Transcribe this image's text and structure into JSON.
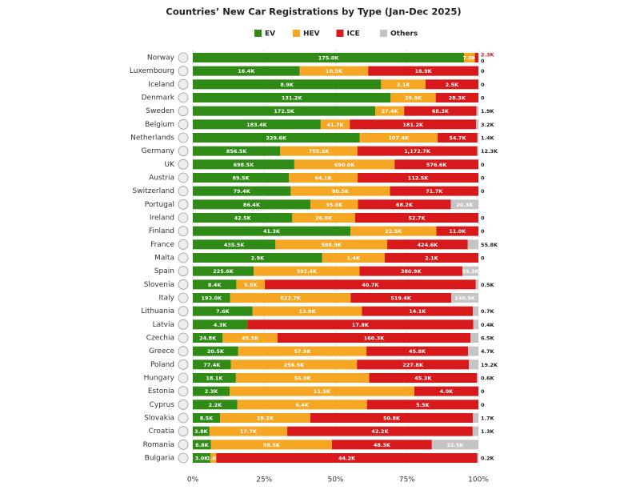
{
  "chart_data": {
    "type": "bar",
    "stacking": "percent",
    "orientation": "horizontal",
    "title": "Countries’ New Car Registrations by Type (Jan-Dec 2025)",
    "categories": [
      "Norway",
      "Luxembourg",
      "Iceland",
      "Denmark",
      "Sweden",
      "Belgium",
      "Netherlands",
      "Germany",
      "UK",
      "Austria",
      "Switzerland",
      "Portugal",
      "Ireland",
      "Finland",
      "France",
      "Malta",
      "Spain",
      "Slovenia",
      "Italy",
      "Lithuania",
      "Latvia",
      "Czechia",
      "Greece",
      "Poland",
      "Hungary",
      "Estonia",
      "Cyprus",
      "Slovakia",
      "Croatia",
      "Romania",
      "Bulgaria"
    ],
    "series": [
      {
        "name": "EV",
        "color": "#2f8a16",
        "values": [
          175000,
          16400,
          8900,
          131200,
          172500,
          183400,
          229600,
          856500,
          698500,
          89500,
          79400,
          86400,
          42500,
          41300,
          435500,
          2900,
          225600,
          8400,
          193000,
          7600,
          4300,
          24800,
          20500,
          77400,
          18100,
          2300,
          2200,
          8500,
          3800,
          8800,
          3000
        ],
        "value_labels": [
          "175.0K",
          "16.4K",
          "8.9K",
          "131.2K",
          "172.5K",
          "183.4K",
          "229.6K",
          "856.5K",
          "698.5K",
          "89.5K",
          "79.4K",
          "86.4K",
          "42.5K",
          "41.3K",
          "435.5K",
          "2.9K",
          "225.6K",
          "8.4K",
          "193.0K",
          "7.6K",
          "4.3K",
          "24.8K",
          "20.5K",
          "77.4K",
          "18.1K",
          "2.3K",
          "2.2K",
          "8.5K",
          "3.8K",
          "8.8K",
          "3.0K"
        ]
      },
      {
        "name": "HEV",
        "color": "#f5a623",
        "values": [
          7000,
          10500,
          2100,
          29900,
          27400,
          41700,
          107400,
          755500,
          690000,
          64100,
          80500,
          35000,
          26800,
          22500,
          588900,
          1400,
          392400,
          5500,
          622700,
          13900,
          null,
          45500,
          57900,
          256500,
          56000,
          11500,
          6400,
          28200,
          17700,
          58500,
          1000
        ],
        "value_labels": [
          "7.0K",
          "10.5K",
          "2.1K",
          "29.9K",
          "27.4K",
          "41.7K",
          "107.4K",
          "755.5K",
          "690.0K",
          "64.1K",
          "80.5K",
          "35.0K",
          "26.8K",
          "22.5K",
          "588.9K",
          "1.4K",
          "392.4K",
          "5.5K",
          "622.7K",
          "13.9K",
          null,
          "45.5K",
          "57.9K",
          "256.5K",
          "56.0K",
          "11.5K",
          "6.4K",
          "28.2K",
          "17.7K",
          "58.5K",
          "1.0K"
        ]
      },
      {
        "name": "ICE",
        "color": "#d7191c",
        "values": [
          2300,
          16900,
          2500,
          28300,
          68300,
          181200,
          54700,
          1172700,
          576600,
          112500,
          71700,
          68200,
          52700,
          11000,
          424600,
          2100,
          380900,
          40700,
          519400,
          14100,
          17800,
          160300,
          45800,
          227800,
          45300,
          4000,
          5500,
          50800,
          42200,
          48300,
          44200
        ],
        "value_labels": [
          "2.3K",
          "16.9K",
          "2.5K",
          "28.3K",
          "68.3K",
          "181.2K",
          "54.7K",
          "1,172.7K",
          "576.6K",
          "112.5K",
          "71.7K",
          "68.2K",
          "52.7K",
          "11.0K",
          "424.6K",
          "2.1K",
          "380.9K",
          "40.7K",
          "519.4K",
          "14.1K",
          "17.8K",
          "160.3K",
          "45.8K",
          "227.8K",
          "45.3K",
          "4.0K",
          "5.5K",
          "50.8K",
          "42.2K",
          "48.3K",
          "44.2K"
        ]
      },
      {
        "name": "Others",
        "color": "#c4c4c4",
        "values": [
          0,
          0,
          0,
          0,
          1900,
          3200,
          1400,
          12300,
          0,
          0,
          0,
          20300,
          0,
          0,
          55800,
          0,
          59300,
          500,
          140500,
          700,
          400,
          6500,
          4700,
          19200,
          600,
          0,
          0,
          1700,
          1300,
          22500,
          200
        ],
        "value_labels": [
          "0",
          "0",
          "0",
          "0",
          "1.9K",
          "3.2K",
          "1.4K",
          "12.3K",
          "0",
          "0",
          "0",
          "20.3K",
          "0",
          "0",
          "55.8K",
          "0",
          "59.3K",
          "0.5K",
          "140.5K",
          "0.7K",
          "0.4K",
          "6.5K",
          "4.7K",
          "19.2K",
          "0.6K",
          "0",
          "0",
          "1.7K",
          "1.3K",
          "22.5K",
          "0.2K"
        ]
      }
    ],
    "xlim": [
      0,
      100
    ],
    "xticks": [
      {
        "value": 0,
        "label": "0%"
      },
      {
        "value": 25,
        "label": "25%"
      },
      {
        "value": 50,
        "label": "50%"
      },
      {
        "value": 75,
        "label": "75%"
      },
      {
        "value": 100,
        "label": "100%"
      }
    ],
    "grid": true,
    "legend": "top"
  }
}
